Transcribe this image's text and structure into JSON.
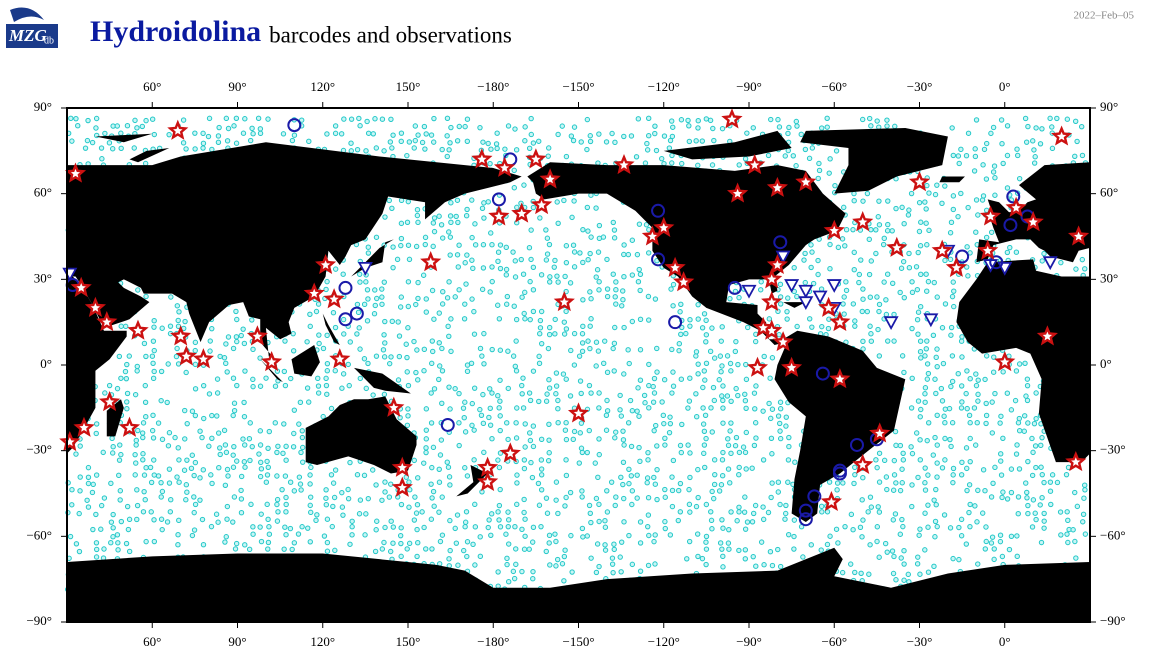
{
  "header": {
    "logo": "MZG",
    "logo_sub": "db",
    "title": "Hydroidolina",
    "subtitle": "barcodes and observations",
    "date": "2022–Feb–05"
  },
  "map": {
    "lon_ticks": [
      {
        "value": 60,
        "label": "60°"
      },
      {
        "value": 90,
        "label": "90°"
      },
      {
        "value": 120,
        "label": "120°"
      },
      {
        "value": 150,
        "label": "150°"
      },
      {
        "value": -180,
        "label": "−180°"
      },
      {
        "value": -150,
        "label": "−150°"
      },
      {
        "value": -120,
        "label": "−120°"
      },
      {
        "value": -90,
        "label": "−90°"
      },
      {
        "value": -60,
        "label": "−60°"
      },
      {
        "value": -30,
        "label": "−30°"
      },
      {
        "value": 0,
        "label": "0°"
      }
    ],
    "lat_ticks": [
      {
        "value": 90,
        "label": "90°"
      },
      {
        "value": 60,
        "label": "60°"
      },
      {
        "value": 30,
        "label": "30°"
      },
      {
        "value": 0,
        "label": "0°"
      },
      {
        "value": -30,
        "label": "−30°"
      },
      {
        "value": -60,
        "label": "−60°"
      },
      {
        "value": -90,
        "label": "−90°"
      }
    ],
    "stars": [
      [
        69,
        82
      ],
      [
        33,
        67
      ],
      [
        35,
        27
      ],
      [
        40,
        20
      ],
      [
        44,
        15
      ],
      [
        55,
        12
      ],
      [
        70,
        10
      ],
      [
        72,
        3
      ],
      [
        78,
        2
      ],
      [
        45,
        -13
      ],
      [
        52,
        -22
      ],
      [
        36,
        -22
      ],
      [
        31,
        -27
      ],
      [
        97,
        10
      ],
      [
        102,
        1
      ],
      [
        117,
        25
      ],
      [
        121,
        35
      ],
      [
        124,
        23
      ],
      [
        126,
        2
      ],
      [
        145,
        -15
      ],
      [
        148,
        -36
      ],
      [
        148,
        -43
      ],
      [
        178,
        -36
      ],
      [
        178,
        -41
      ],
      [
        -174,
        -31
      ],
      [
        158,
        36
      ],
      [
        176,
        72
      ],
      [
        -176,
        69
      ],
      [
        -165,
        72
      ],
      [
        -160,
        65
      ],
      [
        -178,
        52
      ],
      [
        -170,
        53
      ],
      [
        -163,
        56
      ],
      [
        -150,
        -17
      ],
      [
        -155,
        22
      ],
      [
        -134,
        70
      ],
      [
        -120,
        48
      ],
      [
        -124,
        45
      ],
      [
        -116,
        34
      ],
      [
        -113,
        29
      ],
      [
        -96,
        86
      ],
      [
        -94,
        60
      ],
      [
        -88,
        70
      ],
      [
        -80,
        62
      ],
      [
        -70,
        64
      ],
      [
        -80,
        35
      ],
      [
        -82,
        30
      ],
      [
        -82,
        22
      ],
      [
        -82,
        12
      ],
      [
        -78,
        8
      ],
      [
        -87,
        -1
      ],
      [
        -75,
        -1
      ],
      [
        -58,
        15
      ],
      [
        -62,
        20
      ],
      [
        -50,
        50
      ],
      [
        -60,
        47
      ],
      [
        -22,
        40
      ],
      [
        -5,
        52
      ],
      [
        4,
        55
      ],
      [
        10,
        50
      ],
      [
        20,
        80
      ],
      [
        26,
        45
      ],
      [
        15,
        10
      ],
      [
        0,
        1
      ],
      [
        25,
        -34
      ],
      [
        -6,
        40
      ],
      [
        -17,
        34
      ],
      [
        -30,
        64
      ],
      [
        -38,
        41
      ],
      [
        -58,
        -5
      ],
      [
        -44,
        -24
      ],
      [
        -50,
        -35
      ],
      [
        -61,
        -48
      ],
      [
        -85,
        13
      ]
    ],
    "circles": [
      [
        32,
        28
      ],
      [
        110,
        84
      ],
      [
        128,
        27
      ],
      [
        128,
        16
      ],
      [
        132,
        18
      ],
      [
        164,
        -21
      ],
      [
        -178,
        58
      ],
      [
        -174,
        72
      ],
      [
        -122,
        54
      ],
      [
        -122,
        37
      ],
      [
        -116,
        15
      ],
      [
        -64,
        -3
      ],
      [
        -45,
        -26
      ],
      [
        -52,
        -28
      ],
      [
        -58,
        -38
      ],
      [
        -67,
        -46
      ],
      [
        -70,
        -54
      ],
      [
        -70,
        -51
      ],
      [
        -58,
        -37
      ],
      [
        -79,
        43
      ],
      [
        3,
        59
      ],
      [
        8,
        52
      ],
      [
        2,
        49
      ],
      [
        -15,
        38
      ],
      [
        -3,
        36
      ],
      [
        -95,
        27
      ]
    ],
    "triangles": [
      [
        31,
        32
      ],
      [
        135,
        34
      ],
      [
        -90,
        26
      ],
      [
        -78,
        38
      ],
      [
        -75,
        28
      ],
      [
        -70,
        26
      ],
      [
        -65,
        24
      ],
      [
        -60,
        20
      ],
      [
        -40,
        15
      ],
      [
        -26,
        16
      ],
      [
        -20,
        40
      ],
      [
        -5,
        35
      ],
      [
        0,
        34
      ],
      [
        16,
        36
      ],
      [
        -70,
        22
      ],
      [
        -60,
        28
      ]
    ]
  }
}
